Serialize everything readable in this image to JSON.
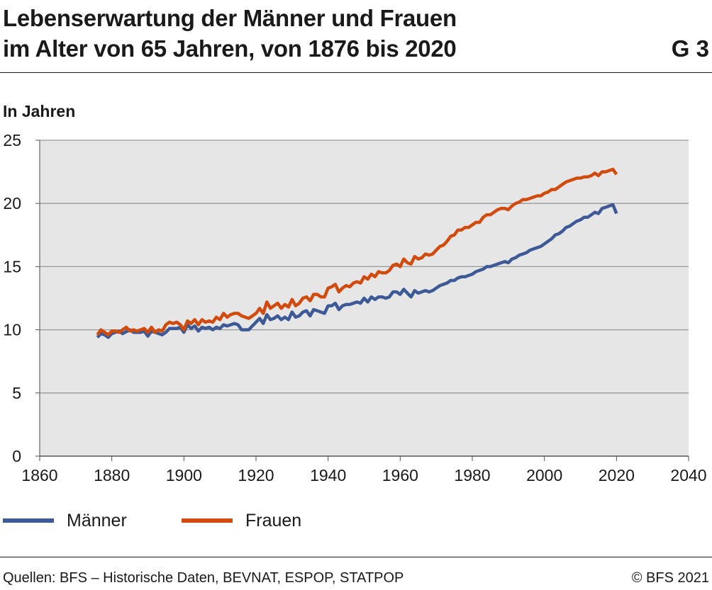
{
  "header": {
    "title_line1": "Lebenserwartung der Männer und Frauen",
    "title_line2": "im Alter von 65 Jahren, von 1876 bis 2020",
    "graphic_number": "G 3"
  },
  "unit_label": "In Jahren",
  "footer": {
    "sources": "Quellen: BFS – Historische Daten, BEVNAT, ESPOP, STATPOP",
    "copyright": "© BFS 2021"
  },
  "colors": {
    "maenner": "#3d5a96",
    "frauen": "#d24b0e",
    "plot_background": "#e6e6e6",
    "grid": "#999999"
  },
  "chart_data": {
    "type": "line",
    "title": "",
    "xlabel": "",
    "ylabel": "In Jahren",
    "xlim": [
      1860,
      2040
    ],
    "ylim": [
      0,
      25
    ],
    "x_ticks": [
      1860,
      1880,
      1900,
      1920,
      1940,
      1960,
      1980,
      2000,
      2020,
      2040
    ],
    "y_ticks": [
      0,
      5,
      10,
      15,
      20,
      25
    ],
    "grid": "horizontal",
    "legend_position": "bottom-left",
    "series": [
      {
        "name": "Männer",
        "color": "#3d5a96",
        "points": [
          [
            1876,
            9.4
          ],
          [
            1877,
            9.7
          ],
          [
            1878,
            9.6
          ],
          [
            1879,
            9.4
          ],
          [
            1880,
            9.7
          ],
          [
            1882,
            9.9
          ],
          [
            1883,
            9.7
          ],
          [
            1885,
            10.0
          ],
          [
            1886,
            9.8
          ],
          [
            1888,
            9.8
          ],
          [
            1889,
            9.9
          ],
          [
            1890,
            9.5
          ],
          [
            1891,
            9.9
          ],
          [
            1892,
            9.8
          ],
          [
            1893,
            9.7
          ],
          [
            1894,
            9.6
          ],
          [
            1895,
            9.8
          ],
          [
            1896,
            10.1
          ],
          [
            1898,
            10.1
          ],
          [
            1899,
            10.2
          ],
          [
            1900,
            9.8
          ],
          [
            1901,
            10.4
          ],
          [
            1902,
            10.1
          ],
          [
            1903,
            10.3
          ],
          [
            1904,
            9.9
          ],
          [
            1905,
            10.2
          ],
          [
            1906,
            10.1
          ],
          [
            1907,
            10.2
          ],
          [
            1908,
            10.0
          ],
          [
            1909,
            10.2
          ],
          [
            1910,
            10.1
          ],
          [
            1911,
            10.4
          ],
          [
            1912,
            10.3
          ],
          [
            1913,
            10.4
          ],
          [
            1914,
            10.5
          ],
          [
            1915,
            10.4
          ],
          [
            1916,
            10.0
          ],
          [
            1917,
            10.0
          ],
          [
            1918,
            10.0
          ],
          [
            1919,
            10.3
          ],
          [
            1920,
            10.6
          ],
          [
            1921,
            10.9
          ],
          [
            1922,
            10.5
          ],
          [
            1923,
            11.2
          ],
          [
            1924,
            10.8
          ],
          [
            1925,
            10.9
          ],
          [
            1926,
            11.1
          ],
          [
            1927,
            10.8
          ],
          [
            1928,
            11.0
          ],
          [
            1929,
            10.8
          ],
          [
            1930,
            11.4
          ],
          [
            1931,
            11.0
          ],
          [
            1932,
            11.1
          ],
          [
            1933,
            11.4
          ],
          [
            1934,
            11.5
          ],
          [
            1935,
            11.1
          ],
          [
            1936,
            11.6
          ],
          [
            1937,
            11.5
          ],
          [
            1938,
            11.4
          ],
          [
            1939,
            11.3
          ],
          [
            1940,
            11.9
          ],
          [
            1941,
            11.9
          ],
          [
            1942,
            12.1
          ],
          [
            1943,
            11.6
          ],
          [
            1944,
            11.9
          ],
          [
            1945,
            12.0
          ],
          [
            1946,
            12.0
          ],
          [
            1947,
            12.1
          ],
          [
            1948,
            12.2
          ],
          [
            1949,
            12.1
          ],
          [
            1950,
            12.5
          ],
          [
            1951,
            12.2
          ],
          [
            1952,
            12.6
          ],
          [
            1953,
            12.4
          ],
          [
            1954,
            12.6
          ],
          [
            1955,
            12.6
          ],
          [
            1956,
            12.5
          ],
          [
            1957,
            12.6
          ],
          [
            1958,
            13.0
          ],
          [
            1959,
            13.0
          ],
          [
            1960,
            12.8
          ],
          [
            1961,
            13.2
          ],
          [
            1962,
            12.9
          ],
          [
            1963,
            12.6
          ],
          [
            1964,
            13.1
          ],
          [
            1965,
            12.9
          ],
          [
            1966,
            13.0
          ],
          [
            1967,
            13.1
          ],
          [
            1968,
            13.0
          ],
          [
            1969,
            13.1
          ],
          [
            1970,
            13.3
          ],
          [
            1971,
            13.5
          ],
          [
            1972,
            13.6
          ],
          [
            1973,
            13.7
          ],
          [
            1974,
            13.9
          ],
          [
            1975,
            13.9
          ],
          [
            1976,
            14.1
          ],
          [
            1977,
            14.2
          ],
          [
            1978,
            14.2
          ],
          [
            1979,
            14.3
          ],
          [
            1980,
            14.4
          ],
          [
            1981,
            14.6
          ],
          [
            1982,
            14.7
          ],
          [
            1983,
            14.8
          ],
          [
            1984,
            15.0
          ],
          [
            1985,
            15.0
          ],
          [
            1986,
            15.1
          ],
          [
            1987,
            15.2
          ],
          [
            1988,
            15.3
          ],
          [
            1989,
            15.4
          ],
          [
            1990,
            15.3
          ],
          [
            1991,
            15.6
          ],
          [
            1992,
            15.7
          ],
          [
            1993,
            15.9
          ],
          [
            1994,
            16.0
          ],
          [
            1995,
            16.1
          ],
          [
            1996,
            16.3
          ],
          [
            1997,
            16.4
          ],
          [
            1998,
            16.5
          ],
          [
            1999,
            16.6
          ],
          [
            2000,
            16.8
          ],
          [
            2001,
            17.0
          ],
          [
            2002,
            17.2
          ],
          [
            2003,
            17.5
          ],
          [
            2004,
            17.6
          ],
          [
            2005,
            17.8
          ],
          [
            2006,
            18.1
          ],
          [
            2007,
            18.2
          ],
          [
            2008,
            18.4
          ],
          [
            2009,
            18.6
          ],
          [
            2010,
            18.7
          ],
          [
            2011,
            18.9
          ],
          [
            2012,
            18.9
          ],
          [
            2013,
            19.1
          ],
          [
            2014,
            19.3
          ],
          [
            2015,
            19.2
          ],
          [
            2016,
            19.6
          ],
          [
            2017,
            19.7
          ],
          [
            2018,
            19.8
          ],
          [
            2019,
            19.9
          ],
          [
            2020,
            19.2
          ]
        ]
      },
      {
        "name": "Frauen",
        "color": "#d24b0e",
        "points": [
          [
            1876,
            9.6
          ],
          [
            1877,
            10.0
          ],
          [
            1878,
            9.8
          ],
          [
            1879,
            9.6
          ],
          [
            1880,
            9.9
          ],
          [
            1881,
            9.9
          ],
          [
            1882,
            9.8
          ],
          [
            1883,
            10.0
          ],
          [
            1884,
            10.2
          ],
          [
            1885,
            9.9
          ],
          [
            1886,
            10.0
          ],
          [
            1887,
            9.9
          ],
          [
            1888,
            10.0
          ],
          [
            1889,
            10.1
          ],
          [
            1890,
            9.8
          ],
          [
            1891,
            10.2
          ],
          [
            1892,
            9.8
          ],
          [
            1893,
            10.0
          ],
          [
            1894,
            9.9
          ],
          [
            1895,
            10.4
          ],
          [
            1896,
            10.6
          ],
          [
            1897,
            10.5
          ],
          [
            1898,
            10.6
          ],
          [
            1899,
            10.4
          ],
          [
            1900,
            10.0
          ],
          [
            1901,
            10.7
          ],
          [
            1902,
            10.5
          ],
          [
            1903,
            10.8
          ],
          [
            1904,
            10.4
          ],
          [
            1905,
            10.8
          ],
          [
            1906,
            10.6
          ],
          [
            1907,
            10.7
          ],
          [
            1908,
            10.6
          ],
          [
            1909,
            11.0
          ],
          [
            1910,
            10.8
          ],
          [
            1911,
            11.3
          ],
          [
            1912,
            11.0
          ],
          [
            1913,
            11.2
          ],
          [
            1914,
            11.3
          ],
          [
            1915,
            11.3
          ],
          [
            1916,
            11.1
          ],
          [
            1917,
            11.0
          ],
          [
            1918,
            10.9
          ],
          [
            1919,
            11.1
          ],
          [
            1920,
            11.3
          ],
          [
            1921,
            11.7
          ],
          [
            1922,
            11.3
          ],
          [
            1923,
            12.2
          ],
          [
            1924,
            11.7
          ],
          [
            1925,
            11.9
          ],
          [
            1926,
            12.1
          ],
          [
            1927,
            11.7
          ],
          [
            1928,
            12.0
          ],
          [
            1929,
            11.8
          ],
          [
            1930,
            12.4
          ],
          [
            1931,
            11.9
          ],
          [
            1932,
            12.1
          ],
          [
            1933,
            12.5
          ],
          [
            1934,
            12.6
          ],
          [
            1935,
            12.3
          ],
          [
            1936,
            12.8
          ],
          [
            1937,
            12.8
          ],
          [
            1938,
            12.6
          ],
          [
            1939,
            12.6
          ],
          [
            1940,
            13.3
          ],
          [
            1941,
            13.4
          ],
          [
            1942,
            13.6
          ],
          [
            1943,
            13.0
          ],
          [
            1944,
            13.3
          ],
          [
            1945,
            13.5
          ],
          [
            1946,
            13.4
          ],
          [
            1947,
            13.7
          ],
          [
            1948,
            13.8
          ],
          [
            1949,
            13.7
          ],
          [
            1950,
            14.2
          ],
          [
            1951,
            14.0
          ],
          [
            1952,
            14.4
          ],
          [
            1953,
            14.2
          ],
          [
            1954,
            14.6
          ],
          [
            1955,
            14.5
          ],
          [
            1956,
            14.5
          ],
          [
            1957,
            14.7
          ],
          [
            1958,
            15.1
          ],
          [
            1959,
            15.2
          ],
          [
            1960,
            15.0
          ],
          [
            1961,
            15.6
          ],
          [
            1962,
            15.3
          ],
          [
            1963,
            15.2
          ],
          [
            1964,
            15.8
          ],
          [
            1965,
            15.6
          ],
          [
            1966,
            15.7
          ],
          [
            1967,
            16.0
          ],
          [
            1968,
            15.9
          ],
          [
            1969,
            16.0
          ],
          [
            1970,
            16.3
          ],
          [
            1971,
            16.6
          ],
          [
            1972,
            16.7
          ],
          [
            1973,
            17.0
          ],
          [
            1974,
            17.4
          ],
          [
            1975,
            17.5
          ],
          [
            1976,
            17.9
          ],
          [
            1977,
            17.9
          ],
          [
            1978,
            18.1
          ],
          [
            1979,
            18.1
          ],
          [
            1980,
            18.3
          ],
          [
            1981,
            18.5
          ],
          [
            1982,
            18.5
          ],
          [
            1983,
            18.9
          ],
          [
            1984,
            19.1
          ],
          [
            1985,
            19.1
          ],
          [
            1986,
            19.3
          ],
          [
            1987,
            19.5
          ],
          [
            1988,
            19.6
          ],
          [
            1989,
            19.6
          ],
          [
            1990,
            19.5
          ],
          [
            1991,
            19.8
          ],
          [
            1992,
            20.0
          ],
          [
            1993,
            20.1
          ],
          [
            1994,
            20.3
          ],
          [
            1995,
            20.3
          ],
          [
            1996,
            20.4
          ],
          [
            1997,
            20.5
          ],
          [
            1998,
            20.6
          ],
          [
            1999,
            20.6
          ],
          [
            2000,
            20.8
          ],
          [
            2001,
            20.9
          ],
          [
            2002,
            21.1
          ],
          [
            2003,
            21.1
          ],
          [
            2004,
            21.3
          ],
          [
            2005,
            21.5
          ],
          [
            2006,
            21.7
          ],
          [
            2007,
            21.8
          ],
          [
            2008,
            21.9
          ],
          [
            2009,
            22.0
          ],
          [
            2010,
            22.0
          ],
          [
            2011,
            22.1
          ],
          [
            2012,
            22.1
          ],
          [
            2013,
            22.2
          ],
          [
            2014,
            22.4
          ],
          [
            2015,
            22.2
          ],
          [
            2016,
            22.5
          ],
          [
            2017,
            22.5
          ],
          [
            2018,
            22.6
          ],
          [
            2019,
            22.7
          ],
          [
            2020,
            22.3
          ]
        ]
      }
    ]
  }
}
